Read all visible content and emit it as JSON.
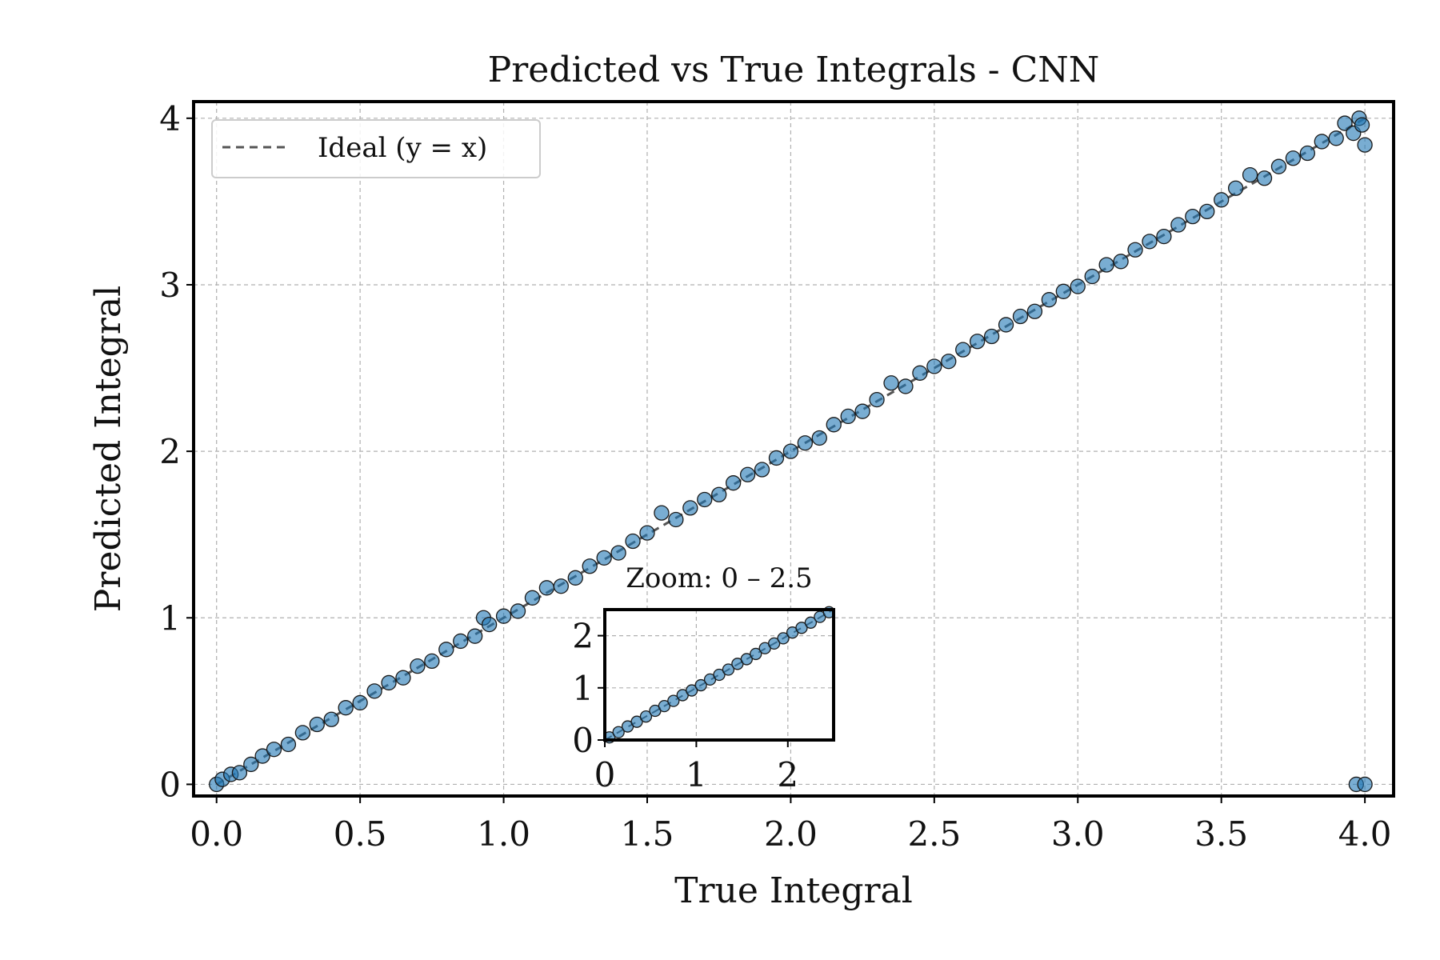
{
  "chart_data": [
    {
      "type": "scatter",
      "title": "Predicted vs True Integrals - CNN",
      "xlabel": "True Integral",
      "ylabel": "Predicted Integral",
      "xlim": [
        -0.08,
        4.1
      ],
      "ylim": [
        -0.07,
        4.1
      ],
      "xticks": [
        0.0,
        0.5,
        1.0,
        1.5,
        2.0,
        2.5,
        3.0,
        3.5,
        4.0
      ],
      "xtick_labels": [
        "0.0",
        "0.5",
        "1.0",
        "1.5",
        "2.0",
        "2.5",
        "3.0",
        "3.5",
        "4.0"
      ],
      "yticks": [
        0,
        1,
        2,
        3,
        4
      ],
      "ytick_labels": [
        "0",
        "1",
        "2",
        "3",
        "4"
      ],
      "grid": true,
      "legend": {
        "position": "top-left",
        "entries": [
          "Ideal (y = x)"
        ]
      },
      "series": [
        {
          "kind": "scatter",
          "color": "#1f77b4",
          "points": [
            [
              0.0,
              0.0
            ],
            [
              0.02,
              0.03
            ],
            [
              0.05,
              0.06
            ],
            [
              0.08,
              0.07
            ],
            [
              0.12,
              0.12
            ],
            [
              0.16,
              0.17
            ],
            [
              0.2,
              0.21
            ],
            [
              0.25,
              0.24
            ],
            [
              0.3,
              0.31
            ],
            [
              0.35,
              0.36
            ],
            [
              0.4,
              0.39
            ],
            [
              0.45,
              0.46
            ],
            [
              0.5,
              0.49
            ],
            [
              0.55,
              0.56
            ],
            [
              0.6,
              0.61
            ],
            [
              0.65,
              0.64
            ],
            [
              0.7,
              0.71
            ],
            [
              0.75,
              0.74
            ],
            [
              0.8,
              0.81
            ],
            [
              0.85,
              0.86
            ],
            [
              0.9,
              0.89
            ],
            [
              0.93,
              1.0
            ],
            [
              0.95,
              0.96
            ],
            [
              1.0,
              1.01
            ],
            [
              1.05,
              1.04
            ],
            [
              1.1,
              1.12
            ],
            [
              1.15,
              1.18
            ],
            [
              1.2,
              1.19
            ],
            [
              1.25,
              1.24
            ],
            [
              1.3,
              1.31
            ],
            [
              1.35,
              1.36
            ],
            [
              1.4,
              1.39
            ],
            [
              1.45,
              1.46
            ],
            [
              1.5,
              1.51
            ],
            [
              1.55,
              1.63
            ],
            [
              1.6,
              1.59
            ],
            [
              1.65,
              1.66
            ],
            [
              1.7,
              1.71
            ],
            [
              1.75,
              1.74
            ],
            [
              1.8,
              1.81
            ],
            [
              1.85,
              1.86
            ],
            [
              1.9,
              1.89
            ],
            [
              1.95,
              1.96
            ],
            [
              2.0,
              2.0
            ],
            [
              2.05,
              2.05
            ],
            [
              2.1,
              2.08
            ],
            [
              2.15,
              2.16
            ],
            [
              2.2,
              2.21
            ],
            [
              2.25,
              2.24
            ],
            [
              2.3,
              2.31
            ],
            [
              2.35,
              2.41
            ],
            [
              2.4,
              2.39
            ],
            [
              2.45,
              2.47
            ],
            [
              2.5,
              2.51
            ],
            [
              2.55,
              2.54
            ],
            [
              2.6,
              2.61
            ],
            [
              2.65,
              2.66
            ],
            [
              2.7,
              2.69
            ],
            [
              2.75,
              2.76
            ],
            [
              2.8,
              2.81
            ],
            [
              2.85,
              2.84
            ],
            [
              2.9,
              2.91
            ],
            [
              2.95,
              2.96
            ],
            [
              3.0,
              2.99
            ],
            [
              3.05,
              3.05
            ],
            [
              3.1,
              3.12
            ],
            [
              3.15,
              3.14
            ],
            [
              3.2,
              3.21
            ],
            [
              3.25,
              3.26
            ],
            [
              3.3,
              3.29
            ],
            [
              3.35,
              3.36
            ],
            [
              3.4,
              3.41
            ],
            [
              3.45,
              3.44
            ],
            [
              3.5,
              3.51
            ],
            [
              3.55,
              3.58
            ],
            [
              3.6,
              3.66
            ],
            [
              3.65,
              3.64
            ],
            [
              3.7,
              3.71
            ],
            [
              3.75,
              3.76
            ],
            [
              3.8,
              3.79
            ],
            [
              3.85,
              3.86
            ],
            [
              3.9,
              3.88
            ],
            [
              3.93,
              3.97
            ],
            [
              3.96,
              3.91
            ],
            [
              3.98,
              4.0
            ],
            [
              3.99,
              3.96
            ],
            [
              4.0,
              3.84
            ],
            [
              3.97,
              0.0
            ],
            [
              4.0,
              0.0
            ]
          ]
        },
        {
          "kind": "line",
          "name": "Ideal (y = x)",
          "color": "#555555",
          "style": "dashed",
          "points": [
            [
              0,
              0
            ],
            [
              4,
              4
            ]
          ]
        }
      ]
    },
    {
      "type": "scatter",
      "title": "Zoom: 0 – 2.5",
      "role": "inset",
      "xlim": [
        0,
        2.5
      ],
      "ylim": [
        0,
        2.5
      ],
      "xticks": [
        0,
        1,
        2
      ],
      "xtick_labels": [
        "0",
        "1",
        "2"
      ],
      "yticks": [
        0,
        1,
        2
      ],
      "ytick_labels": [
        "0",
        "1",
        "2"
      ],
      "grid": true,
      "series": [
        {
          "kind": "scatter",
          "color": "#1f77b4",
          "points": [
            [
              0.05,
              0.05
            ],
            [
              0.15,
              0.15
            ],
            [
              0.25,
              0.26
            ],
            [
              0.35,
              0.35
            ],
            [
              0.45,
              0.45
            ],
            [
              0.55,
              0.56
            ],
            [
              0.65,
              0.65
            ],
            [
              0.75,
              0.75
            ],
            [
              0.85,
              0.86
            ],
            [
              0.95,
              0.95
            ],
            [
              1.05,
              1.05
            ],
            [
              1.15,
              1.16
            ],
            [
              1.25,
              1.25
            ],
            [
              1.35,
              1.35
            ],
            [
              1.45,
              1.46
            ],
            [
              1.55,
              1.55
            ],
            [
              1.65,
              1.65
            ],
            [
              1.75,
              1.76
            ],
            [
              1.85,
              1.85
            ],
            [
              1.95,
              1.95
            ],
            [
              2.05,
              2.06
            ],
            [
              2.15,
              2.15
            ],
            [
              2.25,
              2.25
            ],
            [
              2.35,
              2.36
            ],
            [
              2.45,
              2.45
            ]
          ]
        },
        {
          "kind": "line",
          "color": "#555555",
          "style": "dashed",
          "points": [
            [
              0,
              0
            ],
            [
              2.5,
              2.5
            ]
          ]
        }
      ]
    }
  ]
}
